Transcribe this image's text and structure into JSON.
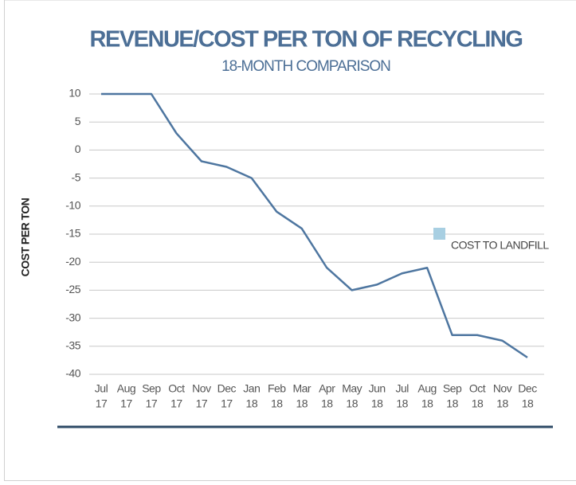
{
  "chart_data": {
    "type": "line",
    "title": "REVENUE/COST PER TON OF RECYCLING",
    "subtitle": "18-MONTH COMPARISON",
    "y_label": "COST PER TON",
    "categories": [
      [
        "Jul",
        "17"
      ],
      [
        "Aug",
        "17"
      ],
      [
        "Sep",
        "17"
      ],
      [
        "Oct",
        "17"
      ],
      [
        "Nov",
        "17"
      ],
      [
        "Dec",
        "17"
      ],
      [
        "Jan",
        "18"
      ],
      [
        "Feb",
        "18"
      ],
      [
        "Mar",
        "18"
      ],
      [
        "Apr",
        "18"
      ],
      [
        "May",
        "18"
      ],
      [
        "Jun",
        "18"
      ],
      [
        "Jul",
        "18"
      ],
      [
        "Aug",
        "18"
      ],
      [
        "Sep",
        "18"
      ],
      [
        "Oct",
        "18"
      ],
      [
        "Nov",
        "18"
      ],
      [
        "Dec",
        "18"
      ]
    ],
    "series": [
      {
        "name": "COST TO LANDFILL",
        "color": "#4e76a0",
        "legend_color": "#a8cfe2",
        "values": [
          10,
          10,
          10,
          3,
          -2,
          -3,
          -5,
          -11,
          -14,
          -21,
          -25,
          -24,
          -22,
          -21,
          -33,
          -33,
          -34,
          -37
        ]
      }
    ],
    "ylim": [
      -40,
      10
    ],
    "yticks": [
      -40,
      -35,
      -30,
      -25,
      -20,
      -15,
      -10,
      -5,
      0,
      5,
      10
    ],
    "grid": true
  }
}
